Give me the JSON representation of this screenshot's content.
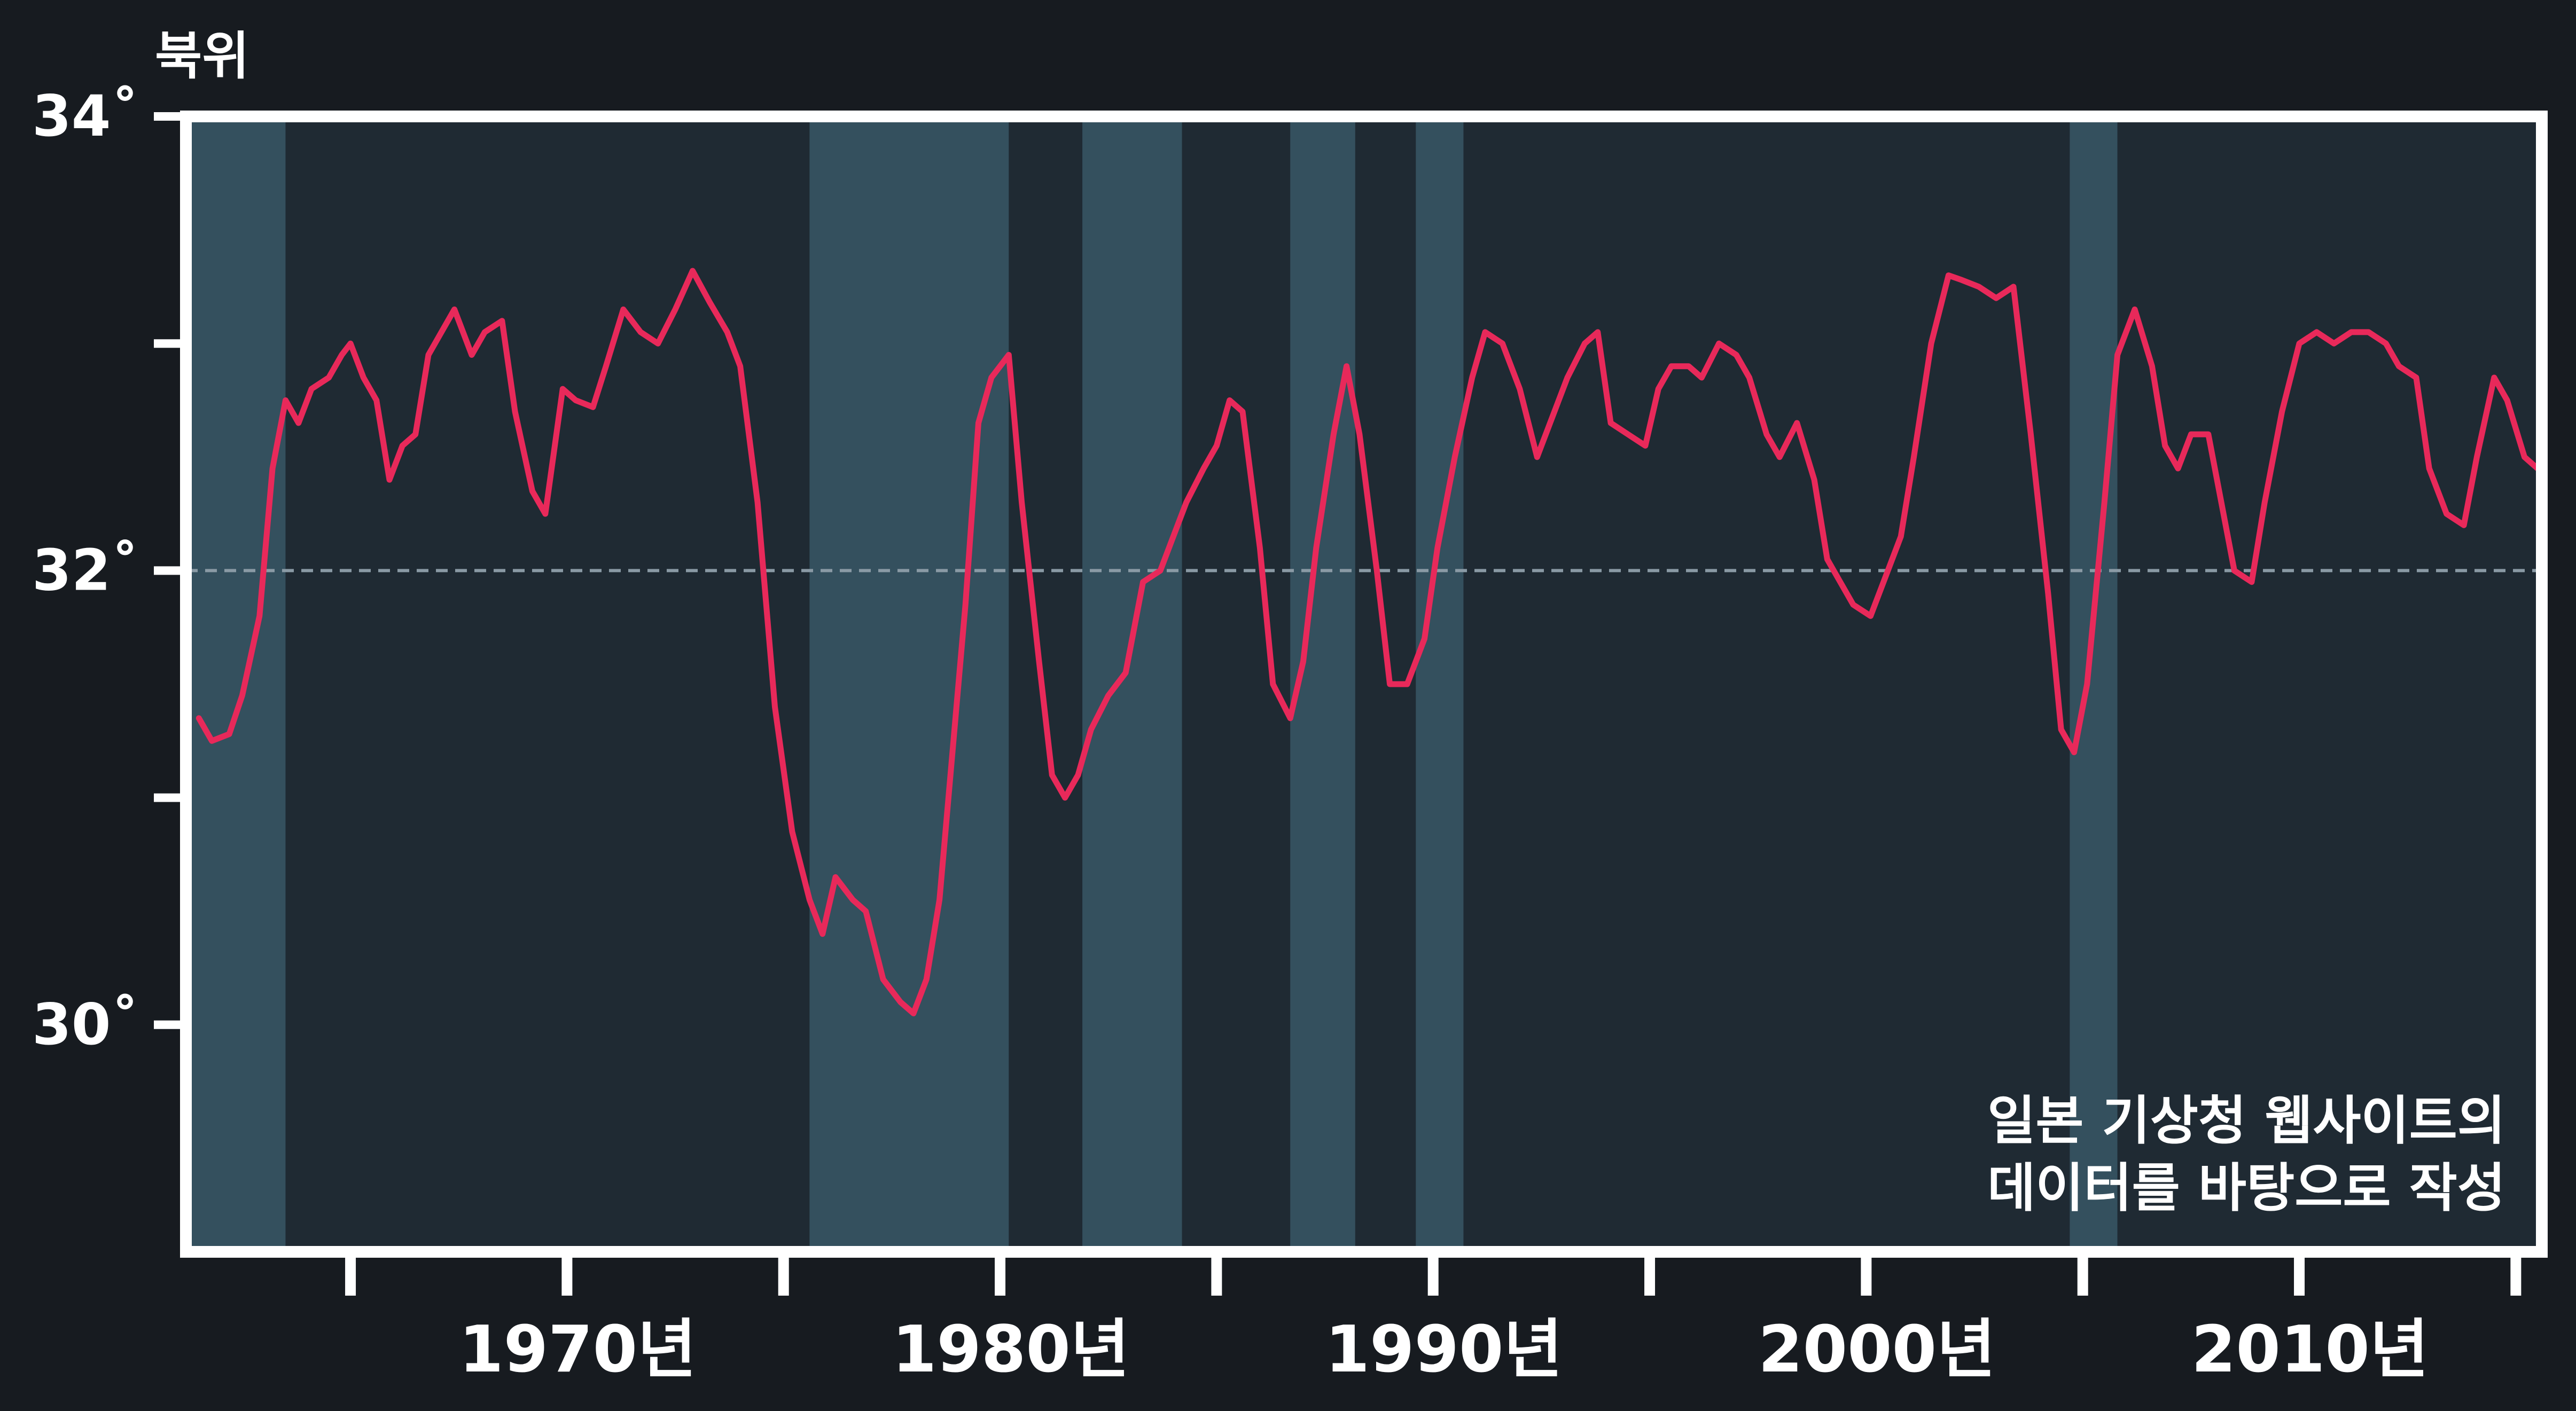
{
  "chart_data": {
    "type": "line",
    "ylabel": "북위",
    "y_ticks": [
      {
        "value": 34,
        "label": "34˚"
      },
      {
        "value": 33,
        "label": ""
      },
      {
        "value": 32,
        "label": "32˚"
      },
      {
        "value": 31,
        "label": ""
      },
      {
        "value": 30,
        "label": "30˚"
      }
    ],
    "x_ticks": [
      {
        "value": 1965,
        "label": ""
      },
      {
        "value": 1970,
        "label": "1970년"
      },
      {
        "value": 1975,
        "label": ""
      },
      {
        "value": 1980,
        "label": "1980년"
      },
      {
        "value": 1985,
        "label": ""
      },
      {
        "value": 1990,
        "label": "1990년"
      },
      {
        "value": 1995,
        "label": ""
      },
      {
        "value": 2000,
        "label": "2000년"
      },
      {
        "value": 2005,
        "label": ""
      },
      {
        "value": 2010,
        "label": "2010년"
      },
      {
        "value": 2015,
        "label": ""
      }
    ],
    "xlim": [
      1961.2,
      2015.6
    ],
    "ylim": [
      29.0,
      34.0
    ],
    "reference_line": 32,
    "shaded_periods": [
      [
        1961.2,
        1963.5
      ],
      [
        1975.6,
        1980.2
      ],
      [
        1981.9,
        1984.2
      ],
      [
        1986.7,
        1988.2
      ],
      [
        1989.6,
        1990.7
      ],
      [
        2004.7,
        2005.8
      ]
    ],
    "annotation": [
      "일본 기상청 웹사이트의",
      "데이터를 바탕으로 작성"
    ],
    "series": [
      {
        "x": [
          1961.5,
          1961.8,
          1962.2,
          1962.5,
          1962.9,
          1963.2,
          1963.5,
          1963.8,
          1964.1,
          1964.5,
          1964.8,
          1965.0,
          1965.3,
          1965.6,
          1965.9,
          1966.2,
          1966.5,
          1966.8,
          1967.1,
          1967.4,
          1967.8,
          1968.1,
          1968.5,
          1968.8,
          1969.2,
          1969.5,
          1969.9,
          1970.2,
          1970.6,
          1970.9,
          1971.3,
          1971.7,
          1972.1,
          1972.5,
          1972.9,
          1973.3,
          1973.7,
          1974.0,
          1974.4,
          1974.8,
          1975.2,
          1975.6,
          1975.9,
          1976.2,
          1976.6,
          1976.9,
          1977.3,
          1977.7,
          1978.0,
          1978.3,
          1978.6,
          1978.9,
          1979.2,
          1979.5,
          1979.8,
          1980.2,
          1980.5,
          1980.9,
          1981.2,
          1981.5,
          1981.8,
          1982.1,
          1982.5,
          1982.9,
          1983.3,
          1983.7,
          1984.0,
          1984.3,
          1984.7,
          1985.0,
          1985.3,
          1985.6,
          1986.0,
          1986.3,
          1986.7,
          1987.0,
          1987.3,
          1987.7,
          1988.0,
          1988.3,
          1988.7,
          1989.0,
          1989.4,
          1989.8,
          1990.1,
          1990.5,
          1990.9,
          1991.2,
          1991.6,
          1992.0,
          1992.4,
          1992.7,
          1993.1,
          1993.5,
          1993.8,
          1994.1,
          1994.5,
          1994.9,
          1995.2,
          1995.5,
          1995.9,
          1996.2,
          1996.6,
          1997.0,
          1997.3,
          1997.7,
          1998.0,
          1998.4,
          1998.8,
          1999.1,
          1999.4,
          1999.7,
          2000.1,
          2000.4,
          2000.8,
          2001.1,
          2001.5,
          2001.9,
          2002.2,
          2002.6,
          2003.0,
          2003.4,
          2003.8,
          2004.2,
          2004.5,
          2004.8,
          2005.1,
          2005.5,
          2005.8,
          2006.2,
          2006.6,
          2006.9,
          2007.2,
          2007.5,
          2007.9,
          2008.2,
          2008.5,
          2008.9,
          2009.2,
          2009.6,
          2010.0,
          2010.4,
          2010.8,
          2011.2,
          2011.6,
          2012.0,
          2012.3,
          2012.7,
          2013.0,
          2013.4,
          2013.8,
          2014.1,
          2014.5,
          2014.8,
          2015.2,
          2015.5
        ],
        "values": [
          31.35,
          31.25,
          31.28,
          31.45,
          31.8,
          32.45,
          32.75,
          32.65,
          32.8,
          32.85,
          32.95,
          33.0,
          32.85,
          32.75,
          32.4,
          32.55,
          32.6,
          32.95,
          33.05,
          33.15,
          32.95,
          33.05,
          33.1,
          32.7,
          32.35,
          32.25,
          32.8,
          32.75,
          32.72,
          32.9,
          33.15,
          33.05,
          33.0,
          33.15,
          33.32,
          33.18,
          33.05,
          32.9,
          32.3,
          31.4,
          30.85,
          30.55,
          30.4,
          30.65,
          30.55,
          30.5,
          30.2,
          30.1,
          30.05,
          30.2,
          30.55,
          31.2,
          31.85,
          32.65,
          32.85,
          32.95,
          32.3,
          31.6,
          31.1,
          31.0,
          31.1,
          31.3,
          31.45,
          31.55,
          31.95,
          32.0,
          32.15,
          32.3,
          32.45,
          32.55,
          32.75,
          32.7,
          32.1,
          31.5,
          31.35,
          31.6,
          32.1,
          32.6,
          32.9,
          32.6,
          32.0,
          31.5,
          31.5,
          31.7,
          32.1,
          32.5,
          32.85,
          33.05,
          33.0,
          32.8,
          32.5,
          32.65,
          32.85,
          33.0,
          33.05,
          32.65,
          32.6,
          32.55,
          32.8,
          32.9,
          32.9,
          32.85,
          33.0,
          32.95,
          32.85,
          32.6,
          32.5,
          32.65,
          32.4,
          32.05,
          31.95,
          31.85,
          31.8,
          31.95,
          32.15,
          32.5,
          33.0,
          33.3,
          33.28,
          33.25,
          33.2,
          33.25,
          32.6,
          31.9,
          31.3,
          31.2,
          31.5,
          32.3,
          32.95,
          33.15,
          32.9,
          32.55,
          32.45,
          32.6,
          32.6,
          32.3,
          32.0,
          31.95,
          32.3,
          32.7,
          33.0,
          33.05,
          33.0,
          33.05,
          33.05,
          33.0,
          32.9,
          32.85,
          32.45,
          32.25,
          32.2,
          32.5,
          32.85,
          32.75,
          32.5,
          32.45
        ]
      }
    ],
    "colors": {
      "background": "#171b20",
      "plot_background": "#1f2a33",
      "shaded_band": "#34505e",
      "line": "#e8295a",
      "reference_line": "#8a9aa5",
      "frame": "#ffffff"
    }
  }
}
